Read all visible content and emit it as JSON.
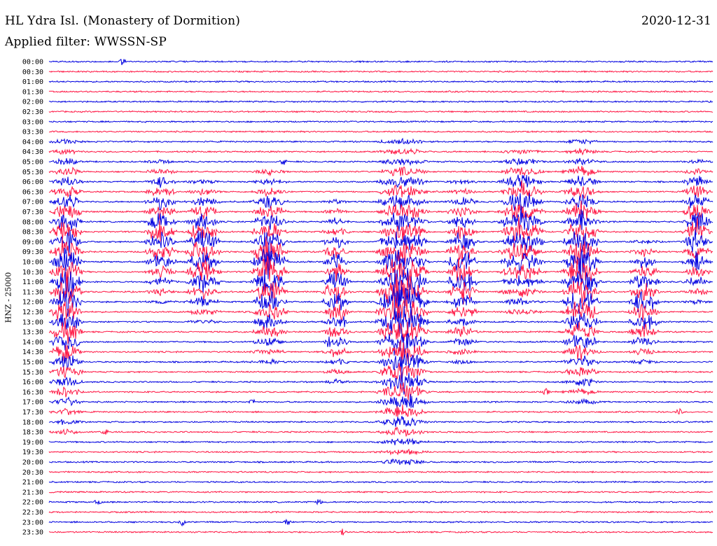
{
  "header": {
    "station": "HL Ydra Isl. (Monastery of Dormition)",
    "filter": "Applied filter: WWSSN-SP",
    "date": "2020-12-31",
    "channel": "HNZ - 25000"
  },
  "colors": {
    "trace_a": "#0000e0",
    "trace_b": "#ff1744",
    "text": "#000000",
    "background": "#ffffff"
  },
  "chart_data": {
    "type": "line",
    "title": "HL Ydra Isl. (Monastery of Dormition)",
    "subtitle": "Applied filter: WWSSN-SP",
    "date": "2020-12-31",
    "ylabel": "HNZ - 25000",
    "xlabel": "",
    "row_labels": [
      "00:00",
      "00:30",
      "01:00",
      "01:30",
      "02:00",
      "02:30",
      "03:00",
      "03:30",
      "04:00",
      "04:30",
      "05:00",
      "05:30",
      "06:00",
      "06:30",
      "07:00",
      "07:30",
      "08:00",
      "08:30",
      "09:00",
      "09:30",
      "10:00",
      "10:30",
      "11:00",
      "11:30",
      "12:00",
      "12:30",
      "13:00",
      "13:30",
      "14:00",
      "14:30",
      "15:00",
      "15:30",
      "16:00",
      "16:30",
      "17:00",
      "17:30",
      "18:00",
      "18:30",
      "19:00",
      "19:30",
      "20:00",
      "20:30",
      "21:00",
      "21:30",
      "22:00",
      "22:30",
      "23:00",
      "23:30"
    ],
    "row_colors": [
      "trace_a",
      "trace_b"
    ],
    "grid": false,
    "legend": "none"
  }
}
